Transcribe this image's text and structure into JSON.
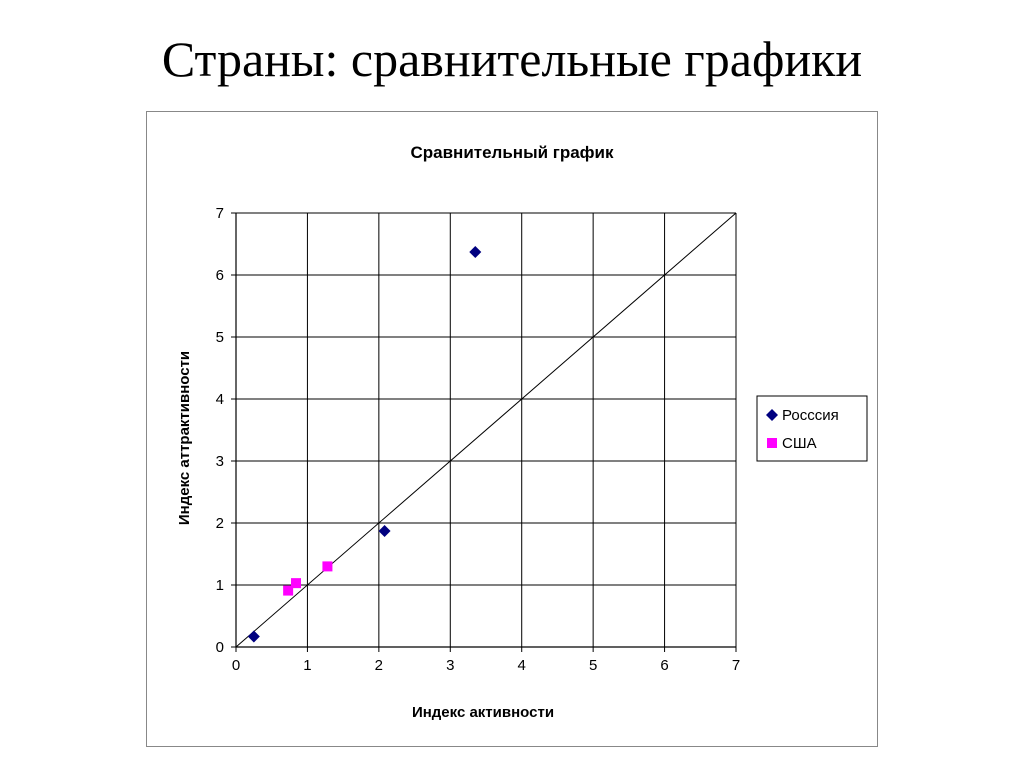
{
  "slide": {
    "title": "Страны: сравнительные графики"
  },
  "chart_data": {
    "type": "scatter",
    "title": "Сравнительный график",
    "xlabel": "Индекс активности",
    "ylabel": "Индекс аттрактивности",
    "xlim": [
      0,
      7
    ],
    "ylim": [
      0,
      7
    ],
    "xticks": [
      "0",
      "1",
      "2",
      "3",
      "4",
      "5",
      "6",
      "7"
    ],
    "yticks": [
      "0",
      "1",
      "2",
      "3",
      "4",
      "5",
      "6",
      "7"
    ],
    "grid": true,
    "legend_position": "right",
    "reference_line": {
      "from": [
        0,
        0
      ],
      "to": [
        7,
        7
      ]
    },
    "series": [
      {
        "name": "Росссия",
        "marker": "diamond",
        "color": "#000080",
        "points": [
          [
            0.25,
            0.17
          ],
          [
            2.08,
            1.87
          ],
          [
            3.35,
            6.37
          ]
        ]
      },
      {
        "name": "США",
        "marker": "square",
        "color": "#ff00ff",
        "points": [
          [
            0.73,
            0.91
          ],
          [
            0.84,
            1.03
          ],
          [
            1.28,
            1.3
          ]
        ]
      }
    ]
  }
}
